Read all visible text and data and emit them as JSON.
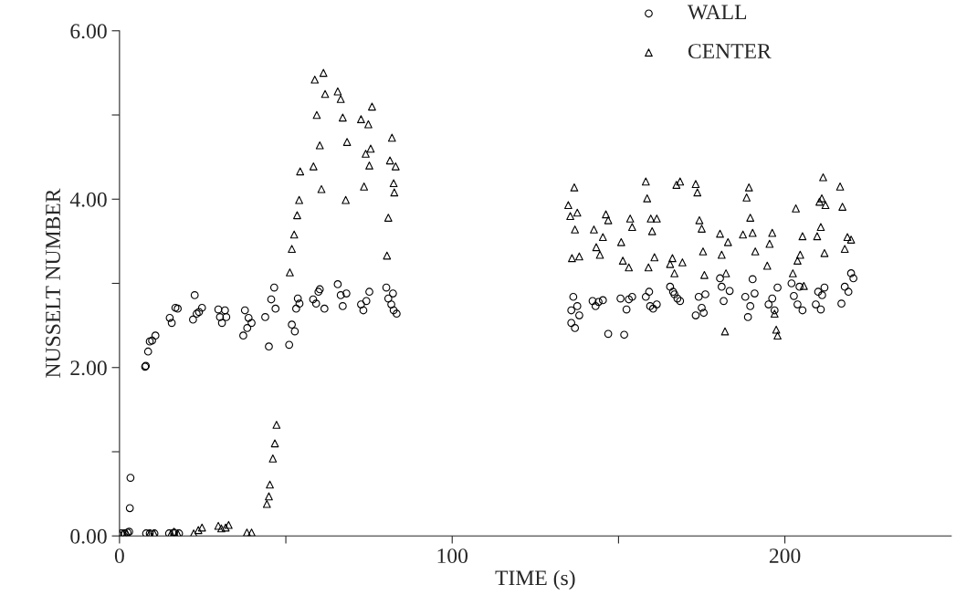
{
  "chart_data": {
    "type": "scatter",
    "xlabel": "TIME (s)",
    "ylabel": "NUSSELT NUMBER",
    "xlim": [
      0,
      250
    ],
    "ylim": [
      0,
      6
    ],
    "xticks": [
      0,
      {
        "value": 50,
        "label": null
      },
      100,
      {
        "value": 150,
        "label": null
      },
      200
    ],
    "yticks": [
      {
        "value": 0,
        "label": "0.00"
      },
      {
        "value": 1,
        "label": null
      },
      {
        "value": 2,
        "label": "2.00"
      },
      {
        "value": 3,
        "label": null
      },
      {
        "value": 4,
        "label": "4.00"
      },
      {
        "value": 5,
        "label": null
      },
      {
        "value": 6,
        "label": "6.00"
      }
    ],
    "grid": false,
    "legend": "top right",
    "series": [
      {
        "name": "WALL",
        "color": "#000000",
        "marker": "circle",
        "x": [
          0.5,
          1.5,
          2.4,
          2.9,
          3.1,
          3.3,
          7.7,
          7.9,
          8.6,
          9.1,
          9.8,
          10.8,
          8.0,
          9.1,
          10.5,
          15.1,
          15.7,
          16.8,
          17.5,
          14.9,
          16.4,
          17.9,
          22.6,
          22.1,
          23.2,
          23.9,
          24.8,
          29.7,
          30.8,
          31.7,
          32.1,
          30.2,
          37.2,
          37.7,
          38.8,
          39.7,
          38.4,
          43.8,
          44.9,
          45.6,
          46.5,
          46.9,
          51.0,
          51.8,
          52.7,
          53.1,
          53.6,
          54.1,
          58.2,
          59.1,
          59.8,
          60.2,
          61.6,
          65.6,
          66.5,
          67.1,
          68.2,
          72.6,
          73.3,
          74.2,
          75.1,
          80.2,
          80.8,
          81.7,
          82.4,
          83.3,
          82.2,
          135.8,
          135.8,
          136.9,
          136.4,
          137.6,
          138.2,
          142.2,
          143.1,
          144.0,
          145.3,
          146.9,
          150.6,
          151.7,
          152.4,
          153.1,
          154.1,
          158.2,
          159.2,
          159.5,
          160.4,
          161.5,
          165.5,
          166.4,
          167.7,
          168.5,
          166.8,
          173.2,
          174.1,
          175.0,
          176.1,
          175.6,
          180.5,
          181.0,
          181.6,
          183.4,
          188.1,
          188.9,
          189.6,
          190.3,
          190.9,
          195.1,
          196.2,
          196.9,
          197.8,
          202.0,
          202.7,
          203.8,
          205.3,
          204.4,
          209.3,
          210.0,
          210.8,
          211.9,
          211.2,
          217.0,
          218.0,
          219.1,
          219.9,
          220.6
        ],
        "values": [
          0.03,
          0.03,
          0.04,
          0.05,
          0.33,
          0.69,
          2.01,
          2.02,
          2.19,
          2.31,
          2.32,
          2.38,
          0.03,
          0.03,
          0.03,
          2.59,
          2.53,
          2.71,
          2.7,
          0.03,
          0.04,
          0.03,
          2.86,
          2.57,
          2.64,
          2.66,
          2.71,
          2.69,
          2.53,
          2.68,
          2.6,
          2.6,
          2.38,
          2.68,
          2.59,
          2.53,
          2.47,
          2.6,
          2.25,
          2.81,
          2.95,
          2.7,
          2.27,
          2.51,
          2.43,
          2.7,
          2.82,
          2.76,
          2.81,
          2.76,
          2.9,
          2.93,
          2.7,
          2.99,
          2.86,
          2.73,
          2.88,
          2.75,
          2.68,
          2.79,
          2.9,
          2.95,
          2.82,
          2.75,
          2.68,
          2.64,
          2.88,
          2.68,
          2.53,
          2.47,
          2.84,
          2.73,
          2.62,
          2.79,
          2.73,
          2.78,
          2.8,
          2.4,
          2.82,
          2.39,
          2.69,
          2.81,
          2.84,
          2.84,
          2.9,
          2.73,
          2.7,
          2.75,
          2.96,
          2.9,
          2.82,
          2.79,
          2.87,
          2.62,
          2.84,
          2.71,
          2.87,
          2.65,
          3.06,
          2.96,
          2.79,
          2.91,
          2.84,
          2.6,
          2.73,
          3.05,
          2.88,
          2.75,
          2.82,
          2.68,
          2.95,
          3.0,
          2.85,
          2.75,
          2.68,
          2.96,
          2.75,
          2.9,
          2.69,
          2.95,
          2.86,
          2.76,
          2.96,
          2.9,
          3.12,
          3.06
        ]
      },
      {
        "name": "CENTER",
        "color": "#000000",
        "marker": "triangle",
        "x": [
          0.0,
          1.1,
          2.2,
          9.1,
          10.4,
          15.5,
          16.4,
          17.5,
          22.3,
          23.7,
          24.8,
          29.7,
          30.6,
          31.9,
          32.8,
          38.3,
          39.7,
          44.3,
          44.9,
          45.2,
          46.1,
          46.7,
          47.2,
          51.2,
          51.8,
          52.5,
          53.4,
          54.0,
          54.3,
          58.3,
          59.3,
          58.7,
          60.2,
          60.7,
          61.3,
          61.8,
          65.6,
          66.5,
          67.1,
          68.0,
          68.4,
          72.6,
          73.5,
          74.0,
          74.8,
          75.1,
          75.9,
          75.5,
          80.4,
          80.8,
          81.3,
          82.4,
          83.0,
          81.9,
          82.6,
          134.9,
          135.5,
          136.0,
          136.7,
          137.6,
          136.9,
          138.2,
          142.6,
          143.3,
          144.4,
          145.3,
          146.2,
          146.9,
          150.8,
          151.3,
          153.1,
          153.5,
          154.1,
          158.2,
          158.6,
          159.7,
          160.1,
          160.8,
          161.5,
          159.0,
          165.5,
          166.2,
          166.8,
          167.4,
          168.5,
          169.2,
          173.2,
          173.7,
          174.3,
          175.0,
          175.8,
          175.4,
          180.5,
          181.0,
          182.0,
          182.3,
          182.9,
          187.4,
          188.5,
          189.2,
          189.6,
          190.3,
          191.1,
          194.7,
          195.4,
          196.2,
          196.9,
          197.4,
          197.8,
          202.4,
          203.3,
          203.8,
          204.6,
          205.3,
          205.7,
          209.7,
          210.4,
          211.1,
          211.5,
          212.2,
          211.9,
          210.8,
          216.6,
          217.3,
          218.0,
          218.8,
          219.9
        ],
        "values": [
          0.02,
          0.03,
          0.03,
          0.03,
          0.03,
          0.03,
          0.05,
          0.03,
          0.03,
          0.07,
          0.1,
          0.12,
          0.09,
          0.1,
          0.13,
          0.04,
          0.04,
          0.38,
          0.47,
          0.61,
          0.92,
          1.1,
          1.32,
          3.13,
          3.41,
          3.58,
          3.81,
          3.99,
          4.33,
          4.39,
          5.0,
          5.42,
          4.64,
          4.12,
          5.5,
          5.25,
          5.28,
          5.19,
          4.97,
          3.99,
          4.68,
          4.95,
          4.15,
          4.54,
          4.89,
          4.4,
          5.1,
          4.6,
          3.33,
          3.78,
          4.46,
          4.19,
          4.39,
          4.73,
          4.08,
          3.93,
          3.8,
          3.3,
          4.14,
          3.84,
          3.64,
          3.32,
          3.64,
          3.43,
          3.34,
          3.55,
          3.82,
          3.75,
          3.49,
          3.27,
          3.19,
          3.77,
          3.67,
          4.21,
          4.01,
          3.77,
          3.62,
          3.31,
          3.77,
          3.19,
          3.23,
          3.3,
          3.12,
          4.17,
          4.21,
          3.25,
          4.18,
          4.08,
          3.75,
          3.65,
          3.1,
          3.38,
          3.59,
          3.34,
          2.43,
          3.12,
          3.49,
          3.58,
          4.02,
          4.14,
          3.78,
          3.6,
          3.38,
          3.21,
          3.47,
          3.6,
          2.64,
          2.45,
          2.38,
          3.12,
          3.89,
          3.27,
          3.34,
          3.56,
          2.97,
          3.56,
          3.97,
          4.01,
          4.26,
          3.93,
          3.36,
          3.67,
          4.15,
          3.91,
          3.41,
          3.55,
          3.52
        ]
      }
    ]
  }
}
